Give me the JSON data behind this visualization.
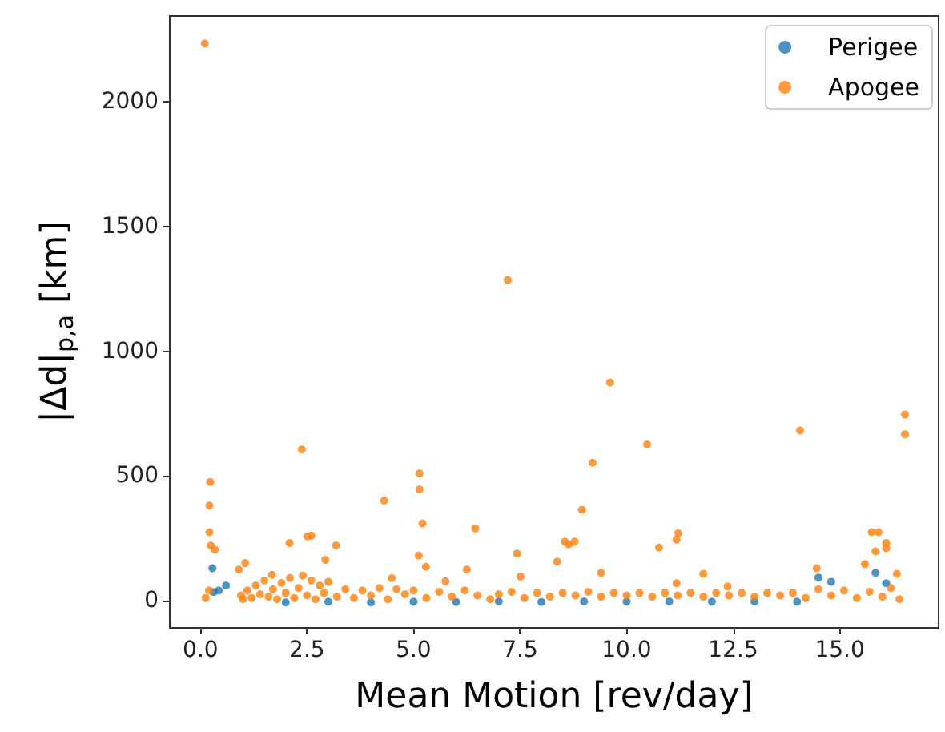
{
  "chart_data": {
    "type": "scatter",
    "xlabel": "Mean Motion [rev/day]",
    "ylabel": "|Δd|$_{p,a}$ [km]",
    "xlim": [
      -0.72,
      17.32
    ],
    "ylim": [
      -110,
      2345
    ],
    "xticks": [
      {
        "value": 0,
        "label": "0.0"
      },
      2.5,
      {
        "value": 5,
        "label": "5.0"
      },
      7.5,
      {
        "value": 10,
        "label": "10.0"
      },
      12.5,
      {
        "value": 15,
        "label": "15.0"
      }
    ],
    "yticks": [
      0,
      500,
      1000,
      1500,
      2000
    ],
    "grid": false,
    "legend": "top right",
    "marker": "circle",
    "series": [
      {
        "name": "Perigee",
        "color": "#1f77b4",
        "x": [
          0.28,
          0.31,
          0.43,
          0.6,
          1.0,
          2.0,
          3.0,
          4.0,
          5.0,
          6.0,
          7.0,
          8.0,
          9.0,
          10.0,
          11.0,
          12.0,
          13.0,
          14.0,
          14.5,
          14.8,
          15.59,
          15.84,
          16.09
        ],
        "values": [
          129,
          34,
          40,
          60,
          null,
          -8,
          -5,
          -8,
          -5,
          -6,
          -4,
          -6,
          -4,
          -5,
          -4,
          -5,
          -4,
          -5,
          92,
          75,
          null,
          111,
          69
        ]
      },
      {
        "name": "Apogee",
        "color": "#ff7f0e",
        "x": [
          0.1,
          7.21,
          9.61,
          10.48,
          14.07,
          16.53,
          16.53,
          2.38,
          9.2,
          5.14,
          5.14,
          4.31,
          0.23,
          0.21,
          8.95,
          6.45,
          5.21,
          0.21,
          0.24,
          2.51,
          2.6,
          3.18,
          11.21,
          11.17,
          10.76,
          2.09,
          8.55,
          8.64,
          8.78,
          7.43,
          8.37,
          5.12,
          2.93,
          15.75,
          15.91,
          16.09,
          16.09,
          15.84,
          15.59,
          14.46,
          6.25,
          9.4,
          11.8,
          16.34,
          1.05,
          0.9,
          0.34,
          1.68,
          4.49,
          5.75,
          11.17,
          12.37,
          7.51,
          5.29,
          0.12,
          0.2,
          0.95,
          1.0,
          1.1,
          1.2,
          1.3,
          1.4,
          1.5,
          1.6,
          1.7,
          1.8,
          1.9,
          2.0,
          2.1,
          2.2,
          2.3,
          2.4,
          2.5,
          2.6,
          2.7,
          2.8,
          2.9,
          3.0,
          3.2,
          3.4,
          3.6,
          3.8,
          4.0,
          4.2,
          4.4,
          4.6,
          4.8,
          5.0,
          5.3,
          5.6,
          5.9,
          6.2,
          6.5,
          6.8,
          7.0,
          7.3,
          7.6,
          7.9,
          8.2,
          8.5,
          8.8,
          9.1,
          9.4,
          9.7,
          10.0,
          10.3,
          10.6,
          10.9,
          11.2,
          11.5,
          11.8,
          12.1,
          12.4,
          12.7,
          13.0,
          13.3,
          13.6,
          13.9,
          14.2,
          14.5,
          14.8,
          15.1,
          15.4,
          15.7,
          16.0,
          16.2,
          16.4
        ],
        "values": [
          2235,
          1286,
          875,
          626,
          682,
          746,
          667,
          606,
          553,
          510,
          446,
          401,
          476,
          381,
          364,
          289,
          309,
          274,
          221,
          257,
          260,
          221,
          270,
          244,
          212,
          231,
          236,
          225,
          236,
          188,
          156,
          180,
          163,
          274,
          274,
          231,
          210,
          197,
          146,
          129,
          124,
          111,
          107,
          107,
          150,
          124,
          204,
          103,
          90,
          77,
          69,
          56,
          96,
          135,
          10,
          40,
          20,
          5,
          40,
          10,
          60,
          25,
          80,
          15,
          45,
          5,
          70,
          30,
          90,
          10,
          50,
          100,
          20,
          80,
          5,
          60,
          30,
          75,
          15,
          45,
          10,
          40,
          20,
          50,
          5,
          45,
          25,
          40,
          10,
          35,
          15,
          40,
          20,
          5,
          25,
          35,
          10,
          30,
          15,
          30,
          20,
          35,
          15,
          30,
          20,
          30,
          15,
          30,
          20,
          30,
          15,
          30,
          20,
          30,
          15,
          30,
          20,
          30,
          10,
          45,
          20,
          40,
          10,
          35,
          15,
          50,
          5
        ]
      }
    ]
  }
}
